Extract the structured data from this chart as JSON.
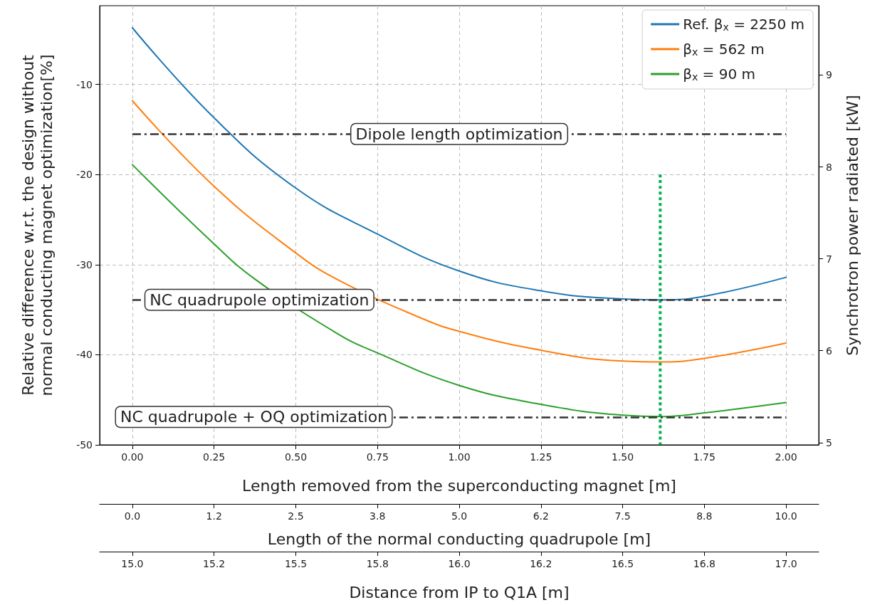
{
  "chart_data": {
    "type": "line",
    "xlabel": "Length removed from the superconducting magnet [m]",
    "ylabel": "Relative difference w.r.t. the design without\nnormal conducting magnet optimization[%]",
    "y2label": "Synchrotron power radiated [kW]",
    "x2label": "Length of the normal conducting quadrupole [m]",
    "annotations": [
      "Distance from IP to Q1A [m]",
      {
        "text": "15.0",
        "x": 0
      },
      {
        "text": "15.2",
        "x": 0.25
      },
      {
        "text": "15.5",
        "x": 0.5
      },
      {
        "text": "15.8",
        "x": 0.75
      },
      {
        "text": "16.0",
        "x": 1.0
      },
      {
        "text": "16.2",
        "x": 1.25
      },
      {
        "text": "16.5",
        "x": 1.5
      },
      {
        "text": "16.8",
        "x": 1.75
      },
      {
        "text": "17.0",
        "x": 2.0
      }
    ],
    "x": [
      0,
      0.25,
      0.5,
      0.75,
      1.0,
      1.25,
      1.5,
      1.625,
      1.75,
      2.0
    ],
    "series": [
      {
        "name": "Ref. β$_{x}$ = 2250 m",
        "color": "#1f77b4",
        "values": [
          -3.7,
          -13.7,
          -21.5,
          -26.6,
          -30.7,
          -32.9,
          -33.8,
          -33.9,
          -33.5,
          -31.4
        ]
      },
      {
        "name": "β$_{x}$ = 562 m",
        "color": "#ff7f0e",
        "x": [
          0,
          0.25,
          0.5,
          0.625,
          0.875,
          1.0,
          1.25,
          1.5,
          1.625,
          1.75,
          2.0
        ],
        "values": [
          -11.8,
          -21.3,
          -28.7,
          -31.6,
          -35.8,
          -37.4,
          -39.5,
          -40.7,
          -40.8,
          -40.4,
          -38.7
        ]
      },
      {
        "name": "β$_{x}$ = 90 m",
        "color": "#2ca02c",
        "x": [
          0,
          0.25,
          0.375,
          0.625,
          0.75,
          1.0,
          1.25,
          1.5,
          1.625,
          1.75,
          2.0
        ],
        "values": [
          -18.9,
          -27.7,
          -31.6,
          -37.6,
          -39.8,
          -43.4,
          -45.5,
          -46.7,
          -46.85,
          -46.45,
          -45.3
        ]
      },
      {
        "type": "line",
        "color": "#00b050",
        "line_style": "dotted",
        "x": [
          1.615,
          1.615
        ],
        "values": [
          -20,
          -50
        ]
      }
    ],
    "ref_lines": [
      {
        "axis": "y",
        "value": -15.5,
        "label": "Dipole length optimization",
        "color": "#333333",
        "line_style": "dashed"
      },
      {
        "axis": "y",
        "value": -33.9,
        "label": "NC quadrupole optimization",
        "color": "#333333",
        "line_style": "dashed"
      },
      {
        "axis": "y",
        "value": -46.9,
        "label": "NC quadrupole + OQ optimization",
        "color": "#333333",
        "line_style": "dashed"
      }
    ],
    "xlim": [
      -0.1,
      2.1
    ],
    "xticks": [
      {
        "value": 0,
        "label": "0.00"
      },
      0.25,
      {
        "value": 0.5,
        "label": "0.50"
      },
      0.75,
      {
        "value": 1,
        "label": "1.00"
      },
      1.25,
      {
        "value": 1.5,
        "label": "1.50"
      },
      1.75,
      {
        "value": 2,
        "label": "2.00"
      }
    ],
    "ylim": [
      -50,
      -1.25
    ],
    "yticks": [
      -50,
      -40,
      -30,
      -20,
      -10
    ],
    "y2lim": [
      4.975,
      9.755
    ],
    "y2ticks": [
      5,
      6,
      7,
      8,
      9
    ],
    "x2lim": [
      -0.5,
      10.5
    ],
    "x2ticks": [
      {
        "value": 0,
        "label": "0.0"
      },
      {
        "value": 1.25,
        "label": "1.2"
      },
      {
        "value": 2.5,
        "label": "2.5"
      },
      {
        "value": 3.75,
        "label": "3.8"
      },
      {
        "value": 5,
        "label": "5.0"
      },
      {
        "value": 6.25,
        "label": "6.2"
      },
      {
        "value": 7.5,
        "label": "7.5"
      },
      {
        "value": 8.75,
        "label": "8.8"
      },
      {
        "value": 10,
        "label": "10.0"
      }
    ],
    "grid": true,
    "legend": "top right",
    "marker": "none",
    "line_style": "solid"
  }
}
